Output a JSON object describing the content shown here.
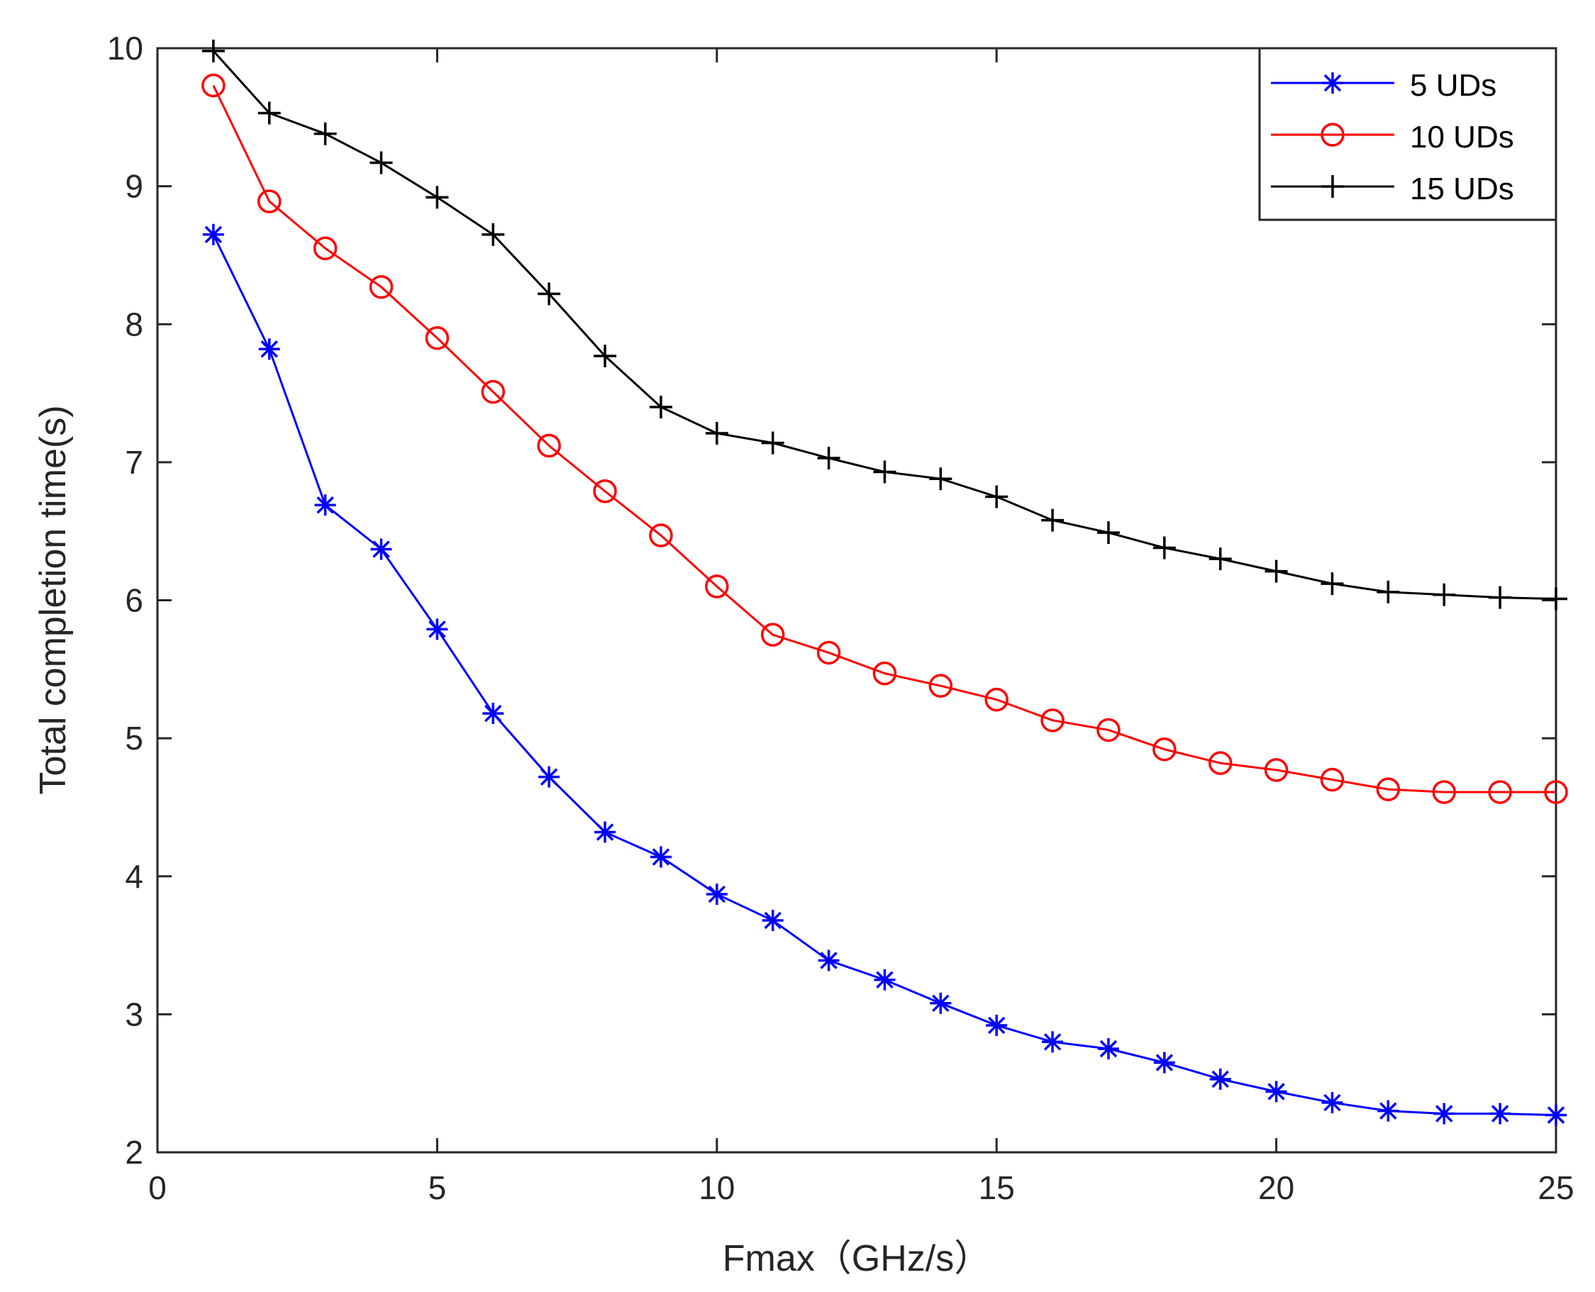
{
  "chart_data": {
    "type": "line",
    "title": "",
    "xlabel": "Fmax（GHz/s）",
    "ylabel": "Total completion time(s)",
    "xlim": [
      0,
      25
    ],
    "ylim": [
      2,
      10
    ],
    "xticks": [
      0,
      5,
      10,
      15,
      20,
      25
    ],
    "yticks": [
      2,
      3,
      4,
      5,
      6,
      7,
      8,
      9,
      10
    ],
    "grid": false,
    "legend_position": "top-right",
    "x": [
      1,
      2,
      3,
      4,
      5,
      6,
      7,
      8,
      9,
      10,
      11,
      12,
      13,
      14,
      15,
      16,
      17,
      18,
      19,
      20,
      21,
      22,
      23,
      24,
      25
    ],
    "series": [
      {
        "name": "5 UDs",
        "color": "#0000ff",
        "marker": "asterisk",
        "values": [
          8.65,
          7.82,
          6.69,
          6.37,
          5.79,
          5.18,
          4.72,
          4.32,
          4.14,
          3.87,
          3.68,
          3.39,
          3.25,
          3.08,
          2.92,
          2.8,
          2.75,
          2.65,
          2.53,
          2.44,
          2.36,
          2.3,
          2.28,
          2.28,
          2.27
        ]
      },
      {
        "name": "10 UDs",
        "color": "#ff0000",
        "marker": "circle",
        "values": [
          9.73,
          8.89,
          8.55,
          8.27,
          7.9,
          7.51,
          7.12,
          6.79,
          6.47,
          6.1,
          5.75,
          5.62,
          5.47,
          5.38,
          5.28,
          5.13,
          5.06,
          4.92,
          4.82,
          4.77,
          4.7,
          4.63,
          4.61,
          4.61,
          4.61
        ]
      },
      {
        "name": "15 UDs",
        "color": "#000000",
        "marker": "plus",
        "values": [
          9.98,
          9.53,
          9.38,
          9.17,
          8.92,
          8.65,
          8.22,
          7.77,
          7.4,
          7.21,
          7.14,
          7.03,
          6.93,
          6.88,
          6.75,
          6.58,
          6.49,
          6.38,
          6.3,
          6.21,
          6.12,
          6.06,
          6.04,
          6.02,
          6.01
        ]
      }
    ]
  }
}
